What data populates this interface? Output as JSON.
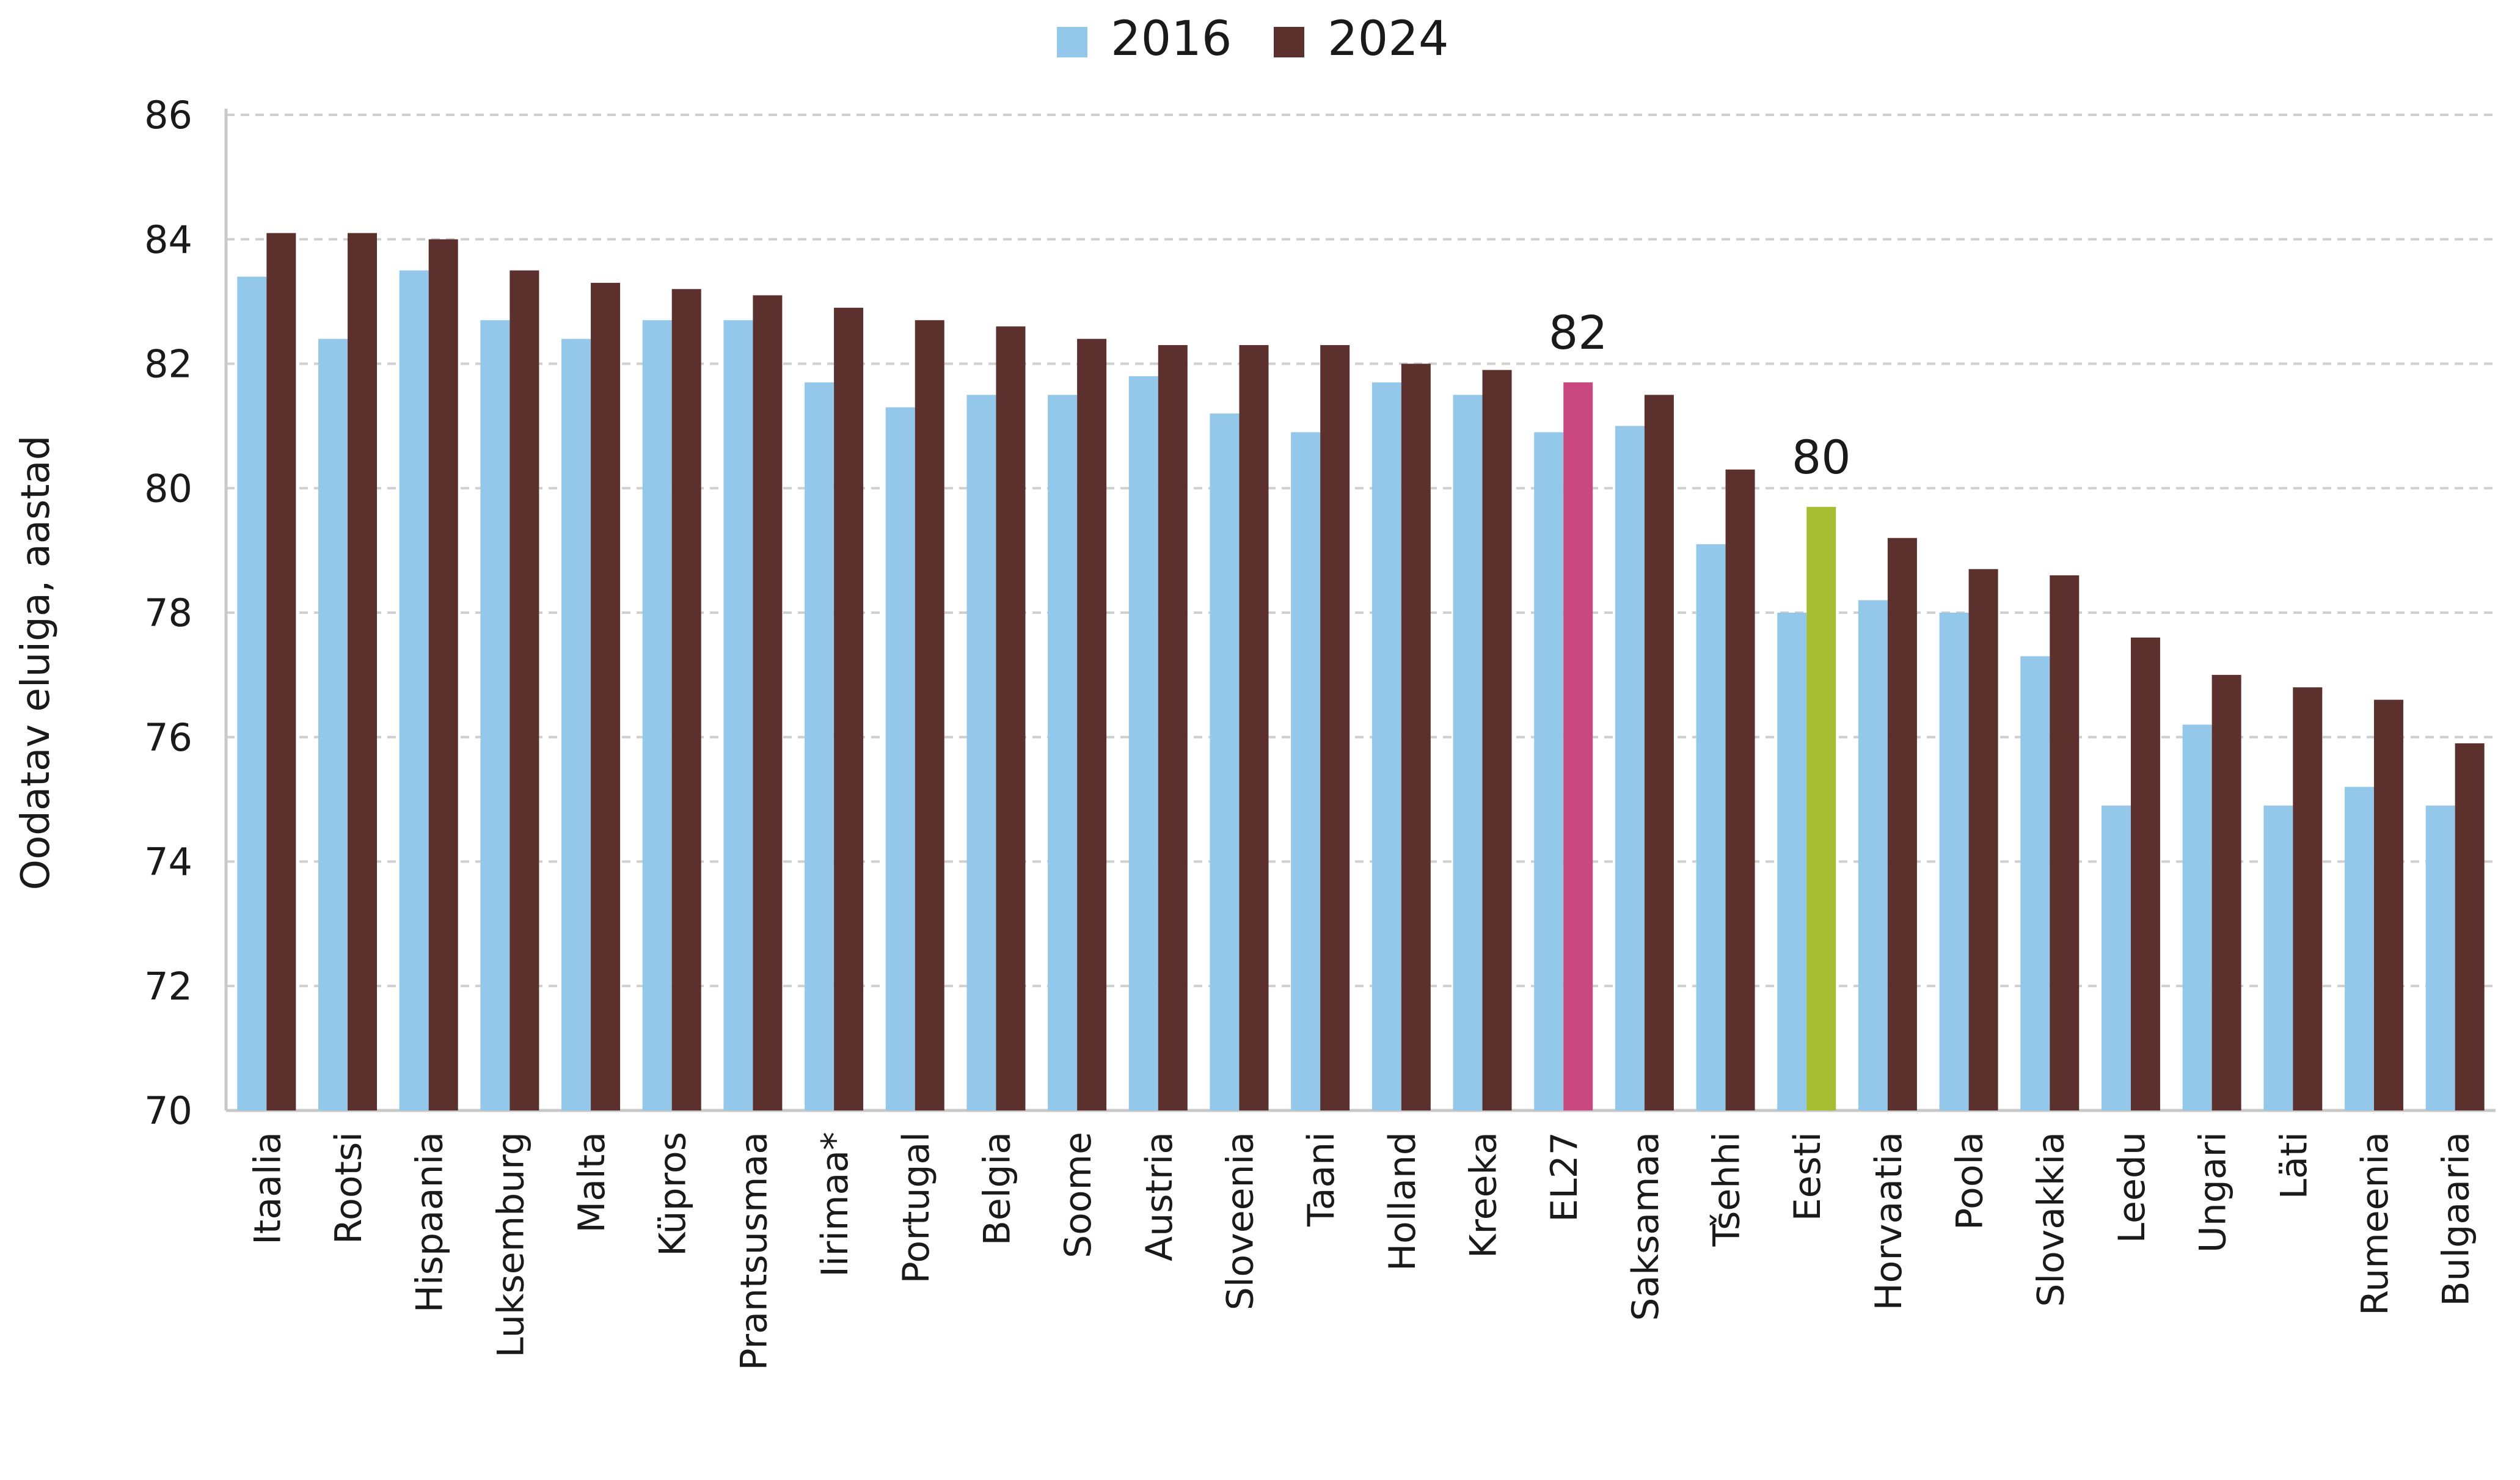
{
  "chart_data": {
    "type": "bar",
    "title": "",
    "xlabel": "",
    "ylabel": "Oodatav eluiga,  aastad",
    "ylim": [
      70,
      86
    ],
    "yticks": [
      70,
      72,
      74,
      76,
      78,
      80,
      82,
      84,
      86
    ],
    "grid": true,
    "legend_position": "top-center",
    "categories": [
      "Itaalia",
      "Rootsi",
      "Hispaania",
      "Luksemburg",
      "Malta",
      "Küpros",
      "Prantsusmaa",
      "Iirimaa*",
      "Portugal",
      "Belgia",
      "Soome",
      "Austria",
      "Sloveenia",
      "Taani",
      "Holland",
      "Kreeka",
      "EL27",
      "Saksamaa",
      "Tšehhi",
      "Eesti",
      "Horvaatia",
      "Poola",
      "Slovakkia",
      "Leedu",
      "Ungari",
      "Läti",
      "Rumeenia",
      "Bulgaaria"
    ],
    "series": [
      {
        "name": "2016",
        "color": "#93c8ea",
        "values": [
          83.4,
          82.4,
          83.5,
          82.7,
          82.4,
          82.7,
          82.7,
          81.7,
          81.3,
          81.5,
          81.5,
          81.8,
          81.2,
          80.9,
          81.7,
          81.5,
          80.9,
          81.0,
          79.1,
          78.0,
          78.2,
          78.0,
          77.3,
          74.9,
          76.2,
          74.9,
          75.2,
          74.9
        ]
      },
      {
        "name": "2024",
        "color": "#5c302d",
        "values": [
          84.1,
          84.1,
          84.0,
          83.5,
          83.3,
          83.2,
          83.1,
          82.9,
          82.7,
          82.6,
          82.4,
          82.3,
          82.3,
          82.3,
          82.0,
          81.9,
          81.7,
          81.5,
          80.3,
          79.7,
          79.2,
          78.7,
          78.6,
          77.6,
          77.0,
          76.8,
          76.6,
          75.9
        ]
      }
    ],
    "highlights": [
      {
        "category": "EL27",
        "series": "2024",
        "color": "#c94880",
        "label": "82"
      },
      {
        "category": "Eesti",
        "series": "2024",
        "color": "#a7bd32",
        "label": "80"
      }
    ],
    "grid_color": "#cfcfcf",
    "axis_color": "#c8c8c8"
  }
}
